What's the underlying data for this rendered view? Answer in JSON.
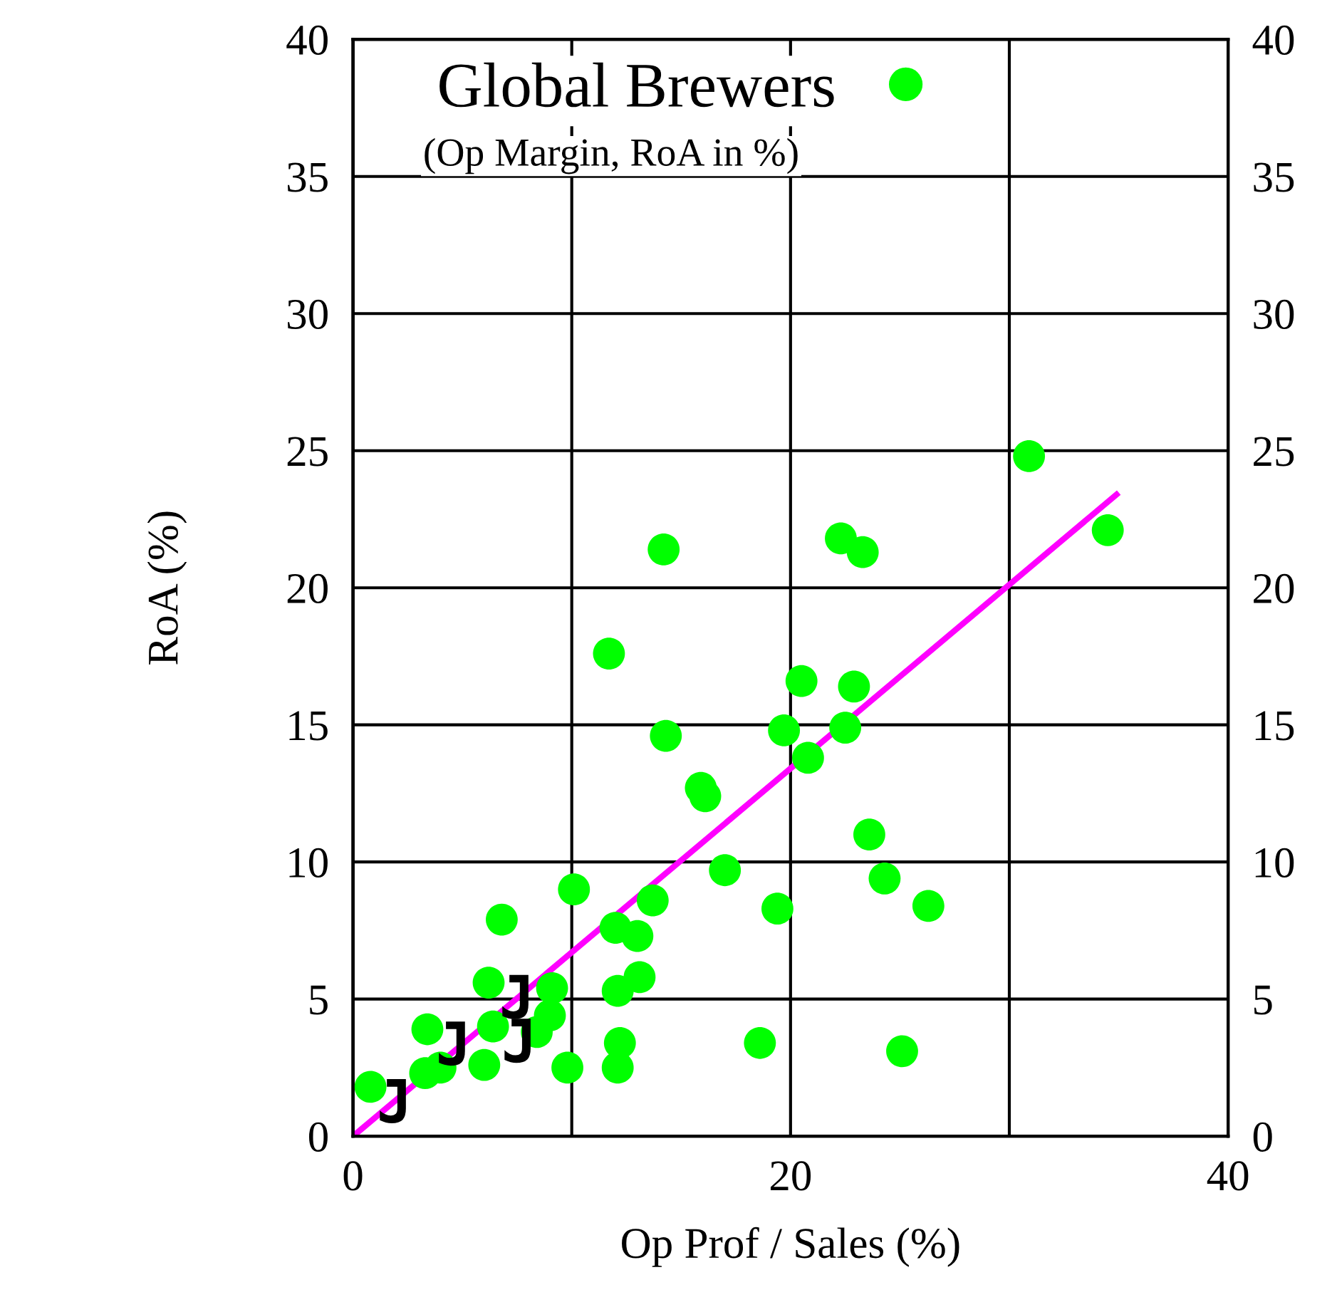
{
  "chart_data": {
    "type": "scatter",
    "subtitle": "(Op Margin, RoA in %)",
    "xlabel": "Op Prof / Sales (%)",
    "ylabel": "RoA (%)",
    "series": [
      {
        "name": "Global Brewers",
        "color": "#00ff00",
        "marker": "circle",
        "x": [
          0.8,
          3.4,
          3.3,
          4.0,
          6.8,
          6.2,
          6.4,
          6.0,
          10.1,
          12.0,
          13.0,
          13.7,
          12.1,
          13.1,
          9.1,
          9.0,
          8.4,
          9.8,
          12.2,
          12.1,
          30.9,
          34.5,
          22.3,
          23.3,
          14.2,
          11.7,
          20.5,
          22.9,
          14.3,
          19.7,
          22.5,
          20.8,
          15.9,
          16.1,
          23.6,
          17.0,
          24.3,
          26.3,
          19.4,
          25.1,
          18.6
        ],
        "values": [
          1.8,
          3.9,
          2.3,
          2.5,
          7.9,
          5.6,
          4.0,
          2.6,
          9.0,
          7.6,
          7.3,
          8.6,
          5.3,
          5.8,
          5.4,
          4.4,
          3.8,
          2.5,
          3.4,
          2.5,
          24.8,
          22.1,
          21.8,
          21.3,
          21.4,
          17.6,
          16.6,
          16.4,
          14.6,
          14.8,
          14.9,
          13.8,
          12.7,
          12.4,
          11.0,
          9.7,
          9.4,
          8.4,
          8.3,
          3.1,
          3.4
        ]
      },
      {
        "type": "line",
        "color": "#ff00ff",
        "x": [
          0,
          34.9
        ],
        "values": [
          0,
          23.4
        ]
      }
    ],
    "annotations": [
      {
        "text": "J",
        "x": 1.9,
        "y": 1.1
      },
      {
        "text": "J",
        "x": 4.6,
        "y": 3.2
      },
      {
        "text": "J",
        "x": 7.5,
        "y": 4.9
      },
      {
        "text": "J",
        "x": 7.6,
        "y": 3.3
      }
    ],
    "xlim": [
      0,
      40
    ],
    "xticks": [
      0,
      {
        "value": 10,
        "label": null
      },
      20,
      {
        "value": 30,
        "label": null
      },
      40
    ],
    "ylim": [
      0,
      40
    ],
    "yticks": [
      0,
      5,
      10,
      15,
      20,
      25,
      30,
      35,
      40
    ],
    "y2lim": [
      0,
      40
    ],
    "y2ticks": [
      0,
      5,
      10,
      15,
      20,
      25,
      30,
      35,
      40
    ],
    "grid": true,
    "legend": "top"
  }
}
